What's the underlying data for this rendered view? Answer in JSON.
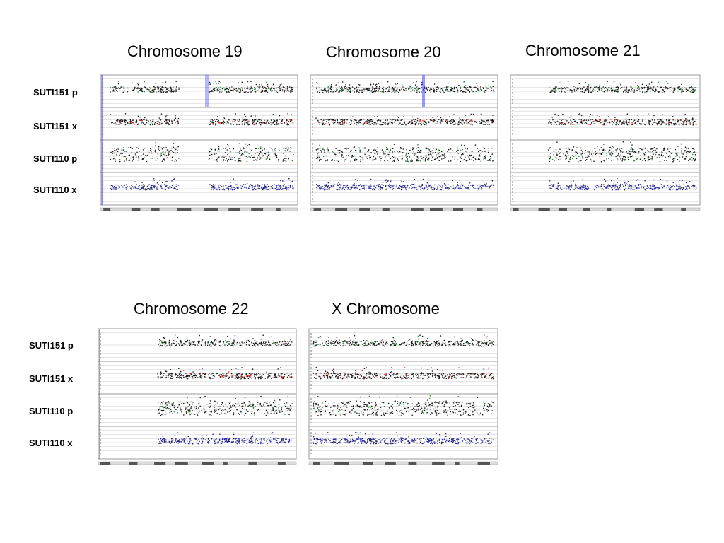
{
  "chart_data": [
    {
      "type": "scatter",
      "title": "Chromosome 19",
      "series": [
        {
          "name": "SUTI151 p",
          "values": []
        },
        {
          "name": "SUTI151 x",
          "values": []
        },
        {
          "name": "SUTI110 p",
          "values": []
        },
        {
          "name": "SUTI110 x",
          "values": []
        }
      ],
      "row_labels": [
        "SUTI151 p",
        "SUTI151 x",
        "SUTI110 p",
        "SUTI110 x"
      ],
      "grid": true
    },
    {
      "type": "scatter",
      "title": "Chromosome 20",
      "series": [
        {
          "name": "SUTI151 p",
          "values": []
        },
        {
          "name": "SUTI151 x",
          "values": []
        },
        {
          "name": "SUTI110 p",
          "values": []
        },
        {
          "name": "SUTI110 x",
          "values": []
        }
      ],
      "grid": true
    },
    {
      "type": "scatter",
      "title": "Chromosome 21",
      "series": [
        {
          "name": "SUTI151 p",
          "values": []
        },
        {
          "name": "SUTI151 x",
          "values": []
        },
        {
          "name": "SUTI110 p",
          "values": []
        },
        {
          "name": "SUTI110 x",
          "values": []
        }
      ],
      "grid": true
    },
    {
      "type": "scatter",
      "title": "Chromosome 22",
      "series": [
        {
          "name": "SUTI151 p",
          "values": []
        },
        {
          "name": "SUTI151 x",
          "values": []
        },
        {
          "name": "SUTI110 p",
          "values": []
        },
        {
          "name": "SUTI110 x",
          "values": []
        }
      ],
      "row_labels": [
        "SUTI151 p",
        "SUTI151 x",
        "SUTI110 p",
        "SUTI110 x"
      ],
      "grid": true
    },
    {
      "type": "scatter",
      "title": "X Chromosome",
      "series": [
        {
          "name": "SUTI151 p",
          "values": []
        },
        {
          "name": "SUTI151 x",
          "values": []
        },
        {
          "name": "SUTI110 p",
          "values": []
        },
        {
          "name": "SUTI110 x",
          "values": []
        }
      ],
      "grid": true
    }
  ],
  "colors": {
    "point_black": "#1a1a1a",
    "point_red": "#e8201a",
    "point_green": "#2e8b3a",
    "point_blue": "#2a2aa0",
    "highlight_blue": "#3333ff",
    "grid": "#cccccc",
    "frame": "#999999"
  }
}
